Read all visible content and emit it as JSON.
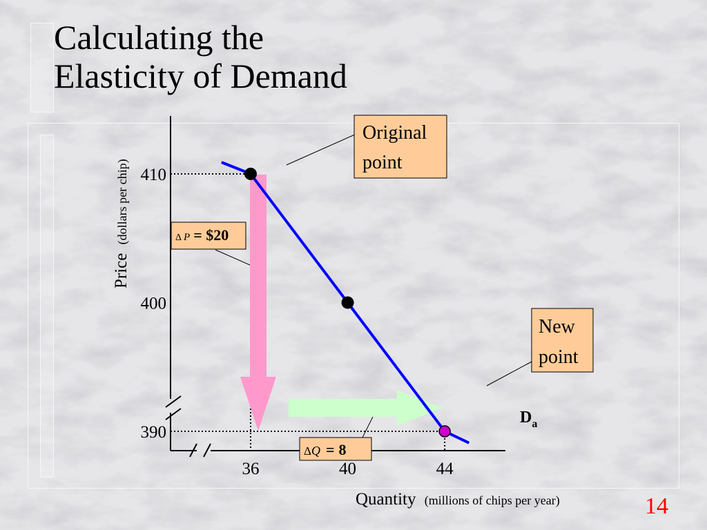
{
  "slide": {
    "title_line1": "Calculating the",
    "title_line2": "Elasticity of Demand",
    "slide_number": "14"
  },
  "colors": {
    "demand_line": "#0000ff",
    "price_change_arrow": "#ff99cc",
    "quantity_change_arrow": "#ccffcc",
    "callout_fill": "#ffcc99",
    "new_point": "#cc00cc",
    "slide_number": "#ff0000"
  },
  "chart_data": {
    "type": "line",
    "series": [
      {
        "name": "Da",
        "x": [
          34.8,
          36,
          40,
          44,
          45
        ],
        "y": [
          410.9,
          410,
          400,
          390,
          389.1
        ]
      }
    ],
    "points": [
      {
        "x": 36,
        "y": 410
      },
      {
        "x": 40,
        "y": 400
      },
      {
        "x": 44,
        "y": 390
      }
    ],
    "xticks": [
      "36",
      "40",
      "44"
    ],
    "xtick_values": [
      36,
      40,
      44
    ],
    "yticks": [
      "410",
      "400",
      "390"
    ],
    "ytick_values": [
      410,
      400,
      390
    ],
    "xlabel": "Quantity",
    "xlabel_units": "(millions of chips per year)",
    "ylabel": "Price",
    "ylabel_units": "(dollars per chip)",
    "xlim": [
      32.7,
      46.5
    ],
    "ylim": [
      388.5,
      414.5
    ],
    "axis_breaks": true,
    "curve_label": "D",
    "curve_label_sub": "a",
    "annotations": {
      "original_point_line1": "Original",
      "original_point_line2": "point",
      "new_point_line1": "New",
      "new_point_line2": "point",
      "delta_p_symbol": "Δ",
      "delta_p_var": "P",
      "delta_p_value": "= $20",
      "delta_q_symbol": "Δ",
      "delta_q_var": "Q",
      "delta_q_eq": "=",
      "delta_q_value": "8"
    }
  }
}
